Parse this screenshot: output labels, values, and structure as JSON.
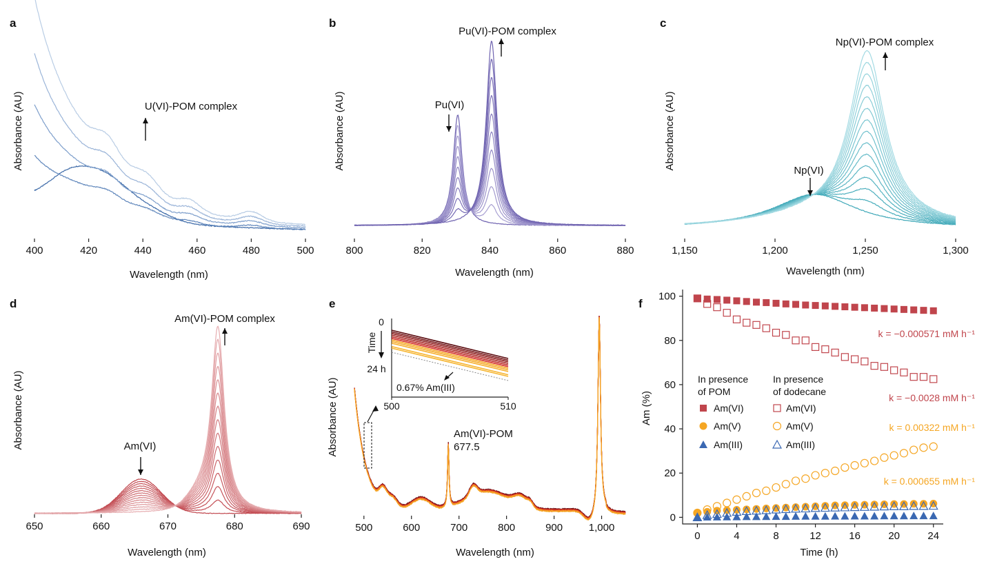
{
  "colors": {
    "a": [
      "#3d6aa8",
      "#5f86bb",
      "#7d9ecb",
      "#9ab4d8",
      "#b8cce4"
    ],
    "b_light": "#c4bde2",
    "b_dark": "#6f63b0",
    "c_light": "#b5e3ea",
    "c_dark": "#3fa8b8",
    "d_light": "#efc7c9",
    "d_dark": "#c0454c",
    "e_dark": "#5a0a0e",
    "e_mid": "#e0302a",
    "e_light": "#f5a623",
    "f_red": "#c0454c",
    "f_orange": "#f5a623",
    "f_blue": "#3a68b2"
  },
  "panels": {
    "a": {
      "label": "a",
      "xlabel": "Wavelength (nm)",
      "ylabel": "Absorbance (AU)",
      "annotation": "U(VI)-POM complex"
    },
    "b": {
      "label": "b",
      "xlabel": "Wavelength (nm)",
      "ylabel": "Absorbance (AU)",
      "ann1": "Pu(VI)-POM complex",
      "ann2": "Pu(VI)"
    },
    "c": {
      "label": "c",
      "xlabel": "Wavelength (nm)",
      "ylabel": "Absorbance (AU)",
      "ann1": "Np(VI)-POM complex",
      "ann2": "Np(VI)"
    },
    "d": {
      "label": "d",
      "xlabel": "Wavelength (nm)",
      "ylabel": "Absorbance (AU)",
      "ann1": "Am(VI)-POM complex",
      "ann2": "Am(VI)"
    },
    "e": {
      "label": "e",
      "xlabel": "Wavelength (nm)",
      "ylabel": "Absorbance (AU)",
      "ann1": "Am(VI)-POM",
      "ann2": "677.5",
      "inset_time": "Time",
      "inset_t0": "0",
      "inset_t1": "24 h",
      "inset_ann": "0.67% Am(III)"
    },
    "f": {
      "label": "f",
      "xlabel": "Time (h)",
      "ylabel": "Am (%)",
      "legend_head1a": "In presence",
      "legend_head1b": "of POM",
      "legend_head2a": "In presence",
      "legend_head2b": "of dodecane",
      "legend_items": [
        "Am(VI)",
        "Am(V)",
        "Am(III)"
      ],
      "k1": "k = −0.000571 mM h⁻¹",
      "k2": "k = −0.0028 mM h⁻¹",
      "k3": "k = 0.00322 mM h⁻¹",
      "k4": "k = 0.000655 mM h⁻¹"
    }
  },
  "chart_data": [
    {
      "type": "line",
      "panel": "a",
      "xlabel": "Wavelength (nm)",
      "ylabel": "Absorbance (AU)",
      "xlim": [
        400,
        500
      ],
      "xticks": [
        "400",
        "420",
        "440",
        "460",
        "480",
        "500"
      ],
      "peaks_nm": [
        414,
        427,
        441,
        480
      ],
      "n_series": 5
    },
    {
      "type": "line",
      "panel": "b",
      "xlabel": "Wavelength (nm)",
      "ylabel": "Absorbance (AU)",
      "xlim": [
        800,
        880
      ],
      "xticks": [
        "800",
        "820",
        "840",
        "860",
        "880"
      ],
      "peaks_nm": {
        "Pu(VI)": 830.5,
        "Pu(VI)-POM complex": 840.5
      },
      "n_series": 11
    },
    {
      "type": "line",
      "panel": "c",
      "xlabel": "Wavelength (nm)",
      "ylabel": "Absorbance (AU)",
      "xlim": [
        1150,
        1300
      ],
      "xticks": [
        "1,150",
        "1,200",
        "1,250",
        "1,300"
      ],
      "peaks_nm": {
        "Np(VI)": 1222,
        "Np(VI)-POM complex": 1251
      },
      "n_series": 15
    },
    {
      "type": "line",
      "panel": "d",
      "xlabel": "Wavelength (nm)",
      "ylabel": "Absorbance (AU)",
      "xlim": [
        650,
        690
      ],
      "xticks": [
        "650",
        "660",
        "670",
        "680",
        "690"
      ],
      "peaks_nm": {
        "Am(VI)": 666,
        "Am(VI)-POM complex": 677.5
      },
      "n_series": 15
    },
    {
      "type": "line",
      "panel": "e",
      "xlabel": "Wavelength (nm)",
      "ylabel": "Absorbance (AU)",
      "xlim": [
        480,
        1050
      ],
      "xticks": [
        "500",
        "600",
        "700",
        "800",
        "900",
        "1,000"
      ],
      "peaks_nm": [
        677.5,
        995
      ],
      "n_series": 12,
      "inset": {
        "xlim": [
          500,
          510
        ],
        "xticks": [
          "500",
          "510"
        ]
      }
    },
    {
      "type": "scatter",
      "panel": "f",
      "xlabel": "Time (h)",
      "ylabel": "Am (%)",
      "xlim": [
        -1.5,
        25
      ],
      "ylim": [
        -3,
        103
      ],
      "xticks": [
        0,
        4,
        8,
        12,
        16,
        20,
        24
      ],
      "yticks": [
        0,
        20,
        40,
        60,
        80,
        100
      ],
      "x": [
        0,
        1,
        2,
        3,
        4,
        5,
        6,
        7,
        8,
        9,
        10,
        11,
        12,
        13,
        14,
        15,
        16,
        17,
        18,
        19,
        20,
        21,
        22,
        23,
        24
      ],
      "series": [
        {
          "name": "Am(VI)",
          "group": "In presence of POM",
          "marker": "filled-square",
          "color": "#c0454c",
          "values": [
            99.0,
            98.7,
            98.5,
            98.2,
            97.9,
            97.6,
            97.3,
            97.1,
            96.8,
            96.5,
            96.3,
            96.0,
            95.8,
            95.6,
            95.4,
            95.2,
            95.0,
            94.8,
            94.6,
            94.4,
            94.2,
            94.0,
            93.8,
            93.6,
            93.4
          ]
        },
        {
          "name": "Am(VI)",
          "group": "In presence of dodecane",
          "marker": "open-square",
          "color": "#c0454c",
          "values": [
            99.0,
            96.5,
            95.0,
            92.5,
            89.5,
            88.0,
            87.0,
            85.5,
            83.5,
            82.5,
            80.0,
            80.0,
            77.0,
            76.0,
            74.5,
            72.5,
            71.5,
            70.5,
            68.5,
            68.0,
            66.5,
            65.5,
            63.5,
            63.5,
            62.5
          ]
        },
        {
          "name": "Am(V)",
          "group": "In presence of POM",
          "marker": "filled-circle",
          "color": "#f5a623",
          "values": [
            2.0,
            2.5,
            3.0,
            3.2,
            3.4,
            3.6,
            3.8,
            4.0,
            4.2,
            4.4,
            4.6,
            4.8,
            5.0,
            5.2,
            5.4,
            5.5,
            5.6,
            5.7,
            5.8,
            5.9,
            6.0,
            6.0,
            6.1,
            6.1,
            6.2
          ]
        },
        {
          "name": "Am(V)",
          "group": "In presence of dodecane",
          "marker": "open-circle",
          "color": "#f5a623",
          "values": [
            2.0,
            3.5,
            5.0,
            6.5,
            8.0,
            9.5,
            11.0,
            12.0,
            13.5,
            15.0,
            16.5,
            17.5,
            19.0,
            20.0,
            21.0,
            22.5,
            23.5,
            24.5,
            25.5,
            27.0,
            28.0,
            29.0,
            30.5,
            31.5,
            32.0
          ]
        },
        {
          "name": "Am(III)",
          "group": "In presence of POM",
          "marker": "filled-triangle",
          "color": "#3a68b2",
          "values": [
            0.0,
            0.1,
            0.15,
            0.2,
            0.25,
            0.3,
            0.3,
            0.35,
            0.4,
            0.4,
            0.45,
            0.5,
            0.5,
            0.5,
            0.55,
            0.55,
            0.6,
            0.6,
            0.6,
            0.65,
            0.65,
            0.65,
            0.7,
            0.7,
            0.7
          ]
        },
        {
          "name": "Am(III)",
          "group": "In presence of dodecane",
          "marker": "open-triangle",
          "color": "#3a68b2",
          "values": [
            0.0,
            1.0,
            1.5,
            2.0,
            2.5,
            2.8,
            3.0,
            3.2,
            3.5,
            3.7,
            3.9,
            4.0,
            4.2,
            4.3,
            4.4,
            4.5,
            4.6,
            4.7,
            4.8,
            4.9,
            5.0,
            5.0,
            5.1,
            5.1,
            5.2
          ]
        }
      ]
    }
  ]
}
